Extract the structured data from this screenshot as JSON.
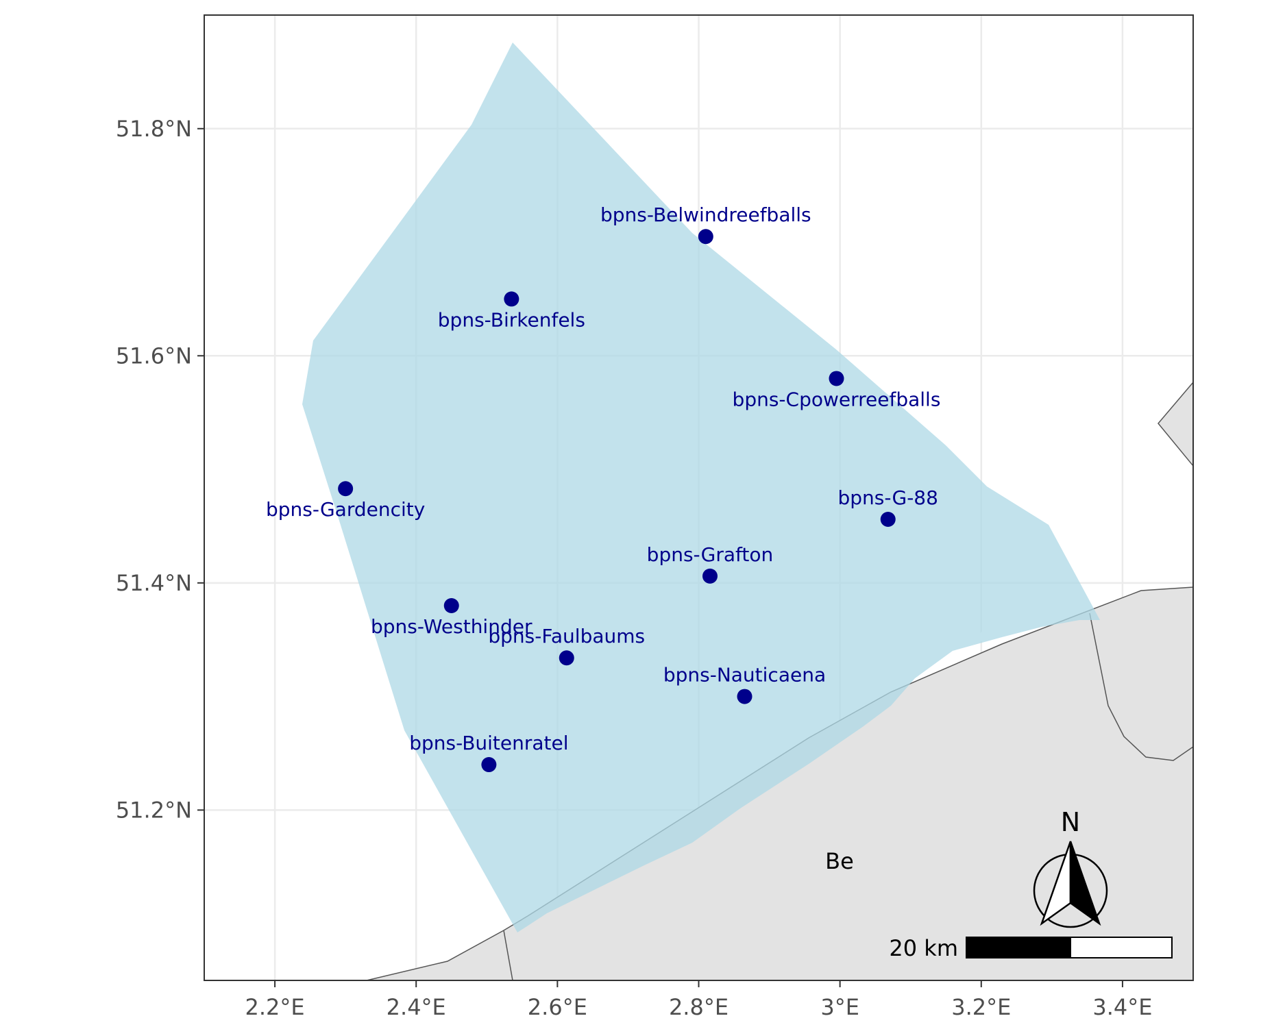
{
  "map": {
    "x_ticks": [
      {
        "lon": 2.2,
        "label": "2.2°E"
      },
      {
        "lon": 2.4,
        "label": "2.4°E"
      },
      {
        "lon": 2.6,
        "label": "2.6°E"
      },
      {
        "lon": 2.8,
        "label": "2.8°E"
      },
      {
        "lon": 3.0,
        "label": "3°E"
      },
      {
        "lon": 3.2,
        "label": "3.2°E"
      },
      {
        "lon": 3.4,
        "label": "3.4°E"
      }
    ],
    "y_ticks": [
      {
        "lat": 51.2,
        "label": "51.2°N"
      },
      {
        "lat": 51.4,
        "label": "51.4°N"
      },
      {
        "lat": 51.6,
        "label": "51.6°N"
      },
      {
        "lat": 51.8,
        "label": "51.8°N"
      }
    ],
    "xlim": [
      2.1,
      3.5
    ],
    "ylim": [
      51.05,
      51.9
    ],
    "colors": {
      "zone_fill": "#add8e6",
      "land_fill": "#e3e3e3",
      "site_color": "#00008b",
      "grid": "#ebebeb",
      "panel_border": "#333333"
    },
    "sites": [
      {
        "name": "bpns-Belwindreefballs",
        "lon": 2.81,
        "lat": 51.705,
        "label_pos": "above"
      },
      {
        "name": "bpns-Birkenfels",
        "lon": 2.535,
        "lat": 51.65,
        "label_pos": "below"
      },
      {
        "name": "bpns-Cpowerreefballs",
        "lon": 2.995,
        "lat": 51.58,
        "label_pos": "below"
      },
      {
        "name": "bpns-Gardencity",
        "lon": 2.3,
        "lat": 51.483,
        "label_pos": "below"
      },
      {
        "name": "bpns-G-88",
        "lon": 3.068,
        "lat": 51.456,
        "label_pos": "above"
      },
      {
        "name": "bpns-Grafton",
        "lon": 2.816,
        "lat": 51.406,
        "label_pos": "above"
      },
      {
        "name": "bpns-Westhinder",
        "lon": 2.45,
        "lat": 51.38,
        "label_pos": "below"
      },
      {
        "name": "bpns-Faulbaums",
        "lon": 2.613,
        "lat": 51.334,
        "label_pos": "above"
      },
      {
        "name": "bpns-Nauticaena",
        "lon": 2.865,
        "lat": 51.3,
        "label_pos": "above"
      },
      {
        "name": "bpns-Buitenratel",
        "lon": 2.503,
        "lat": 51.24,
        "label_pos": "above"
      }
    ],
    "country_label": "Be",
    "north_arrow_label": "N",
    "scale_bar_label": "20 km"
  }
}
